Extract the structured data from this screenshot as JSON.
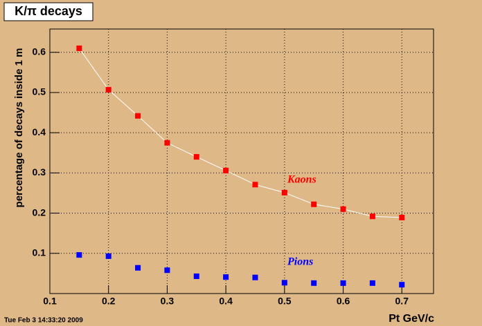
{
  "chart_data": {
    "type": "scatter",
    "title": "K/π decays",
    "x_label": "Pt GeV/c",
    "y_label": "percentage of decays inside 1 m",
    "timestamp": "Tue Feb  3 14:33:20 2009",
    "x": [
      0.15,
      0.2,
      0.25,
      0.3,
      0.35,
      0.4,
      0.45,
      0.5,
      0.55,
      0.6,
      0.65,
      0.7
    ],
    "series": [
      {
        "name": "Kaons",
        "color": "#ff0000",
        "line_color": "#ffffff",
        "values": [
          0.61,
          0.507,
          0.442,
          0.375,
          0.34,
          0.306,
          0.271,
          0.251,
          0.222,
          0.21,
          0.192,
          0.189
        ]
      },
      {
        "name": "Pions",
        "color": "#0000ff",
        "values": [
          0.096,
          0.093,
          0.064,
          0.058,
          0.043,
          0.041,
          0.04,
          0.027,
          0.026,
          0.026,
          0.026,
          0.022
        ]
      }
    ],
    "xlim": [
      0.1,
      0.754
    ],
    "ylim": [
      0,
      0.658
    ],
    "xticks": [
      0.1,
      0.2,
      0.3,
      0.4,
      0.5,
      0.6,
      0.7
    ],
    "yticks": [
      0.1,
      0.2,
      0.3,
      0.4,
      0.5,
      0.6
    ],
    "grid": true
  }
}
